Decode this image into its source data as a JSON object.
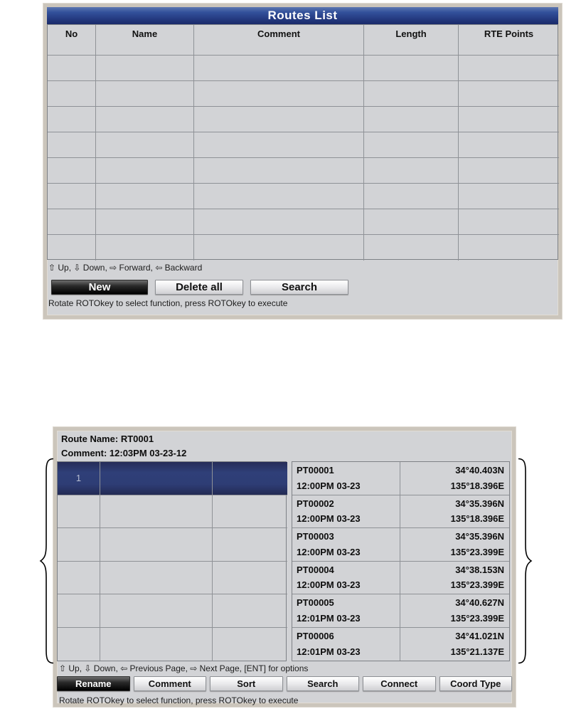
{
  "colors": {
    "panel_frame": "#cbc5bb",
    "panel_bg": "#d2d3d6",
    "title_bar_blue_top": "#5d77b0",
    "title_bar_blue_bottom": "#1a2a6a",
    "selected_row_blue": "#2f3f78",
    "selected_button_black": "#000000",
    "grid_line": "#8f9297",
    "title_text": "#ffffff"
  },
  "routes_list": {
    "title": "Routes List",
    "columns": [
      "No",
      "Name",
      "Comment",
      "Length",
      "RTE Points"
    ],
    "empty_rows": 8,
    "hint": "⇧ Up, ⇩ Down, ⇨ Forward, ⇦ Backward",
    "buttons": [
      {
        "label": "New",
        "selected": true
      },
      {
        "label": "Delete all",
        "selected": false
      },
      {
        "label": "Search",
        "selected": false
      }
    ],
    "status": "Rotate ROTOkey to select function, press ROTOkey to execute"
  },
  "route_detail": {
    "route_name_label": "Route Name:",
    "route_name_value": "RT0001",
    "comment_label": "Comment:",
    "comment_value": "12:03PM 03-23-12",
    "selected_row_number": "1",
    "points": [
      {
        "name": "PT00001",
        "time": "12:00PM 03-23",
        "lat": "34°40.403N",
        "lon": "135°18.396E"
      },
      {
        "name": "PT00002",
        "time": "12:00PM 03-23",
        "lat": "34°35.396N",
        "lon": "135°18.396E"
      },
      {
        "name": "PT00003",
        "time": "12:00PM 03-23",
        "lat": "34°35.396N",
        "lon": "135°23.399E"
      },
      {
        "name": "PT00004",
        "time": "12:00PM 03-23",
        "lat": "34°38.153N",
        "lon": "135°23.399E"
      },
      {
        "name": "PT00005",
        "time": "12:01PM 03-23",
        "lat": "34°40.627N",
        "lon": "135°23.399E"
      },
      {
        "name": "PT00006",
        "time": "12:01PM 03-23",
        "lat": "34°41.021N",
        "lon": "135°21.137E"
      }
    ],
    "hint": "⇧ Up, ⇩ Down, ⇦ Previous Page, ⇨ Next Page, [ENT] for options",
    "buttons": [
      {
        "label": "Rename",
        "selected": true
      },
      {
        "label": "Comment",
        "selected": false
      },
      {
        "label": "Sort",
        "selected": false
      },
      {
        "label": "Search",
        "selected": false
      },
      {
        "label": "Connect",
        "selected": false
      },
      {
        "label": "Coord Type",
        "selected": false
      }
    ],
    "status": "Rotate ROTOkey to select function, press ROTOkey to execute"
  }
}
